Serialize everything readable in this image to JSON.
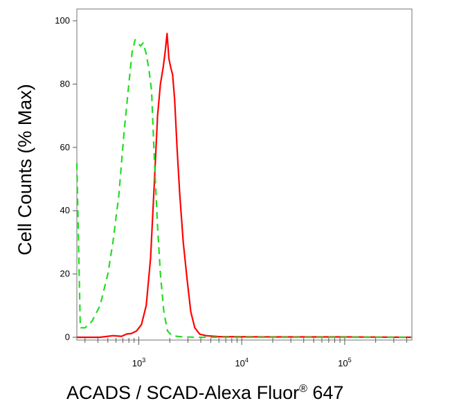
{
  "chart_data": {
    "type": "line",
    "title": "",
    "xlabel": "ACADS / SCAD-Alexa Fluor",
    "xlabel_superscript": "®",
    "xlabel_suffix": " 647",
    "ylabel": "Cell Counts (% Max)",
    "x_scale": "log",
    "xlim": [
      250,
      450000
    ],
    "ylim": [
      0,
      100
    ],
    "yticks": [
      0,
      20,
      40,
      60,
      80,
      100
    ],
    "xticks": [
      {
        "value": 1000,
        "base": "10",
        "exp": "3"
      },
      {
        "value": 10000,
        "base": "10",
        "exp": "4"
      },
      {
        "value": 100000,
        "base": "10",
        "exp": "5"
      }
    ],
    "grid": false,
    "legend": "none",
    "series": [
      {
        "color": "#ff0000",
        "style": "solid",
        "x": [
          250,
          420,
          560,
          680,
          760,
          850,
          950,
          1060,
          1180,
          1300,
          1420,
          1520,
          1620,
          1720,
          1800,
          1880,
          1960,
          2050,
          2130,
          2230,
          2350,
          2500,
          2700,
          2950,
          3200,
          3500,
          3900,
          4500,
          6000,
          20000,
          100000,
          450000
        ],
        "y": [
          0,
          0,
          0.5,
          0.3,
          1,
          1.2,
          2,
          4,
          10,
          25,
          50,
          70,
          80,
          85,
          90,
          96,
          88,
          85,
          83,
          75,
          60,
          45,
          30,
          18,
          8,
          3,
          1,
          0.5,
          0.2,
          0.1,
          0.1,
          0
        ]
      },
      {
        "color": "#22dd22",
        "style": "dashed",
        "x": [
          250,
          270,
          300,
          350,
          420,
          500,
          560,
          640,
          720,
          800,
          860,
          920,
          980,
          1040,
          1100,
          1170,
          1250,
          1330,
          1420,
          1520,
          1620,
          1750,
          1900,
          2100,
          2500,
          3500,
          5000,
          20000,
          450000
        ],
        "y": [
          55,
          3,
          3,
          5,
          10,
          20,
          30,
          45,
          65,
          80,
          90,
          94,
          93,
          92,
          93,
          90,
          85,
          78,
          55,
          35,
          20,
          8,
          2,
          0.5,
          0.2,
          0,
          0,
          0,
          0
        ]
      }
    ]
  }
}
